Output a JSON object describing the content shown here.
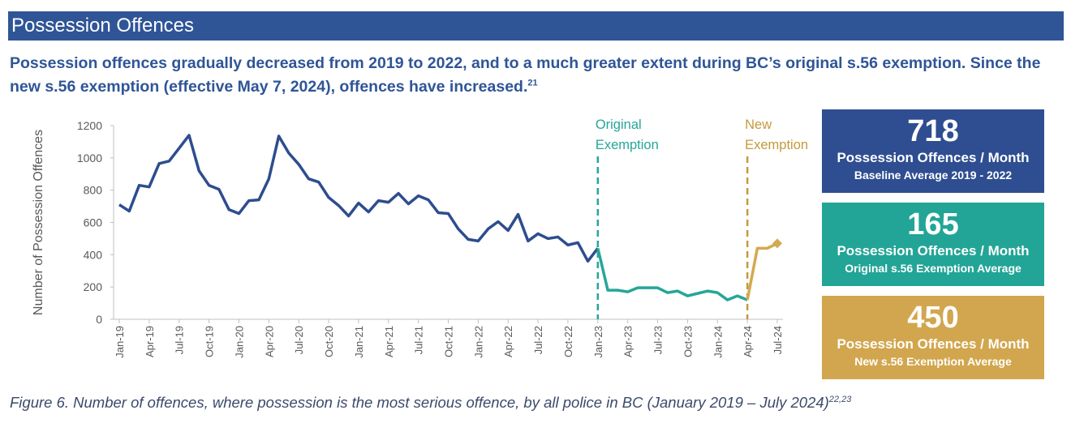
{
  "header": {
    "title": "Possession Offences"
  },
  "subtitle": {
    "text": "Possession offences gradually decreased from 2019 to 2022, and to a much greater extent during BC’s original s.56 exemption. Since the new s.56 exemption (effective May 7, 2024), offences have increased.",
    "superscript": "21"
  },
  "chart_data": {
    "type": "line",
    "y_label": "Number of Possession Offences",
    "categories": [
      "Jan-19",
      null,
      null,
      "Apr-19",
      null,
      null,
      "Jul-19",
      null,
      null,
      "Oct-19",
      null,
      null,
      "Jan-20",
      null,
      null,
      "Apr-20",
      null,
      null,
      "Jul-20",
      null,
      null,
      "Oct-20",
      null,
      null,
      "Jan-21",
      null,
      null,
      "Apr-21",
      null,
      null,
      "Jul-21",
      null,
      null,
      "Oct-21",
      null,
      null,
      "Jan-22",
      null,
      null,
      "Apr-22",
      null,
      null,
      "Jul-22",
      null,
      null,
      "Oct-22",
      null,
      null,
      "Jan-23",
      null,
      null,
      "Apr-23",
      null,
      null,
      "Jul-23",
      null,
      null,
      "Oct-23",
      null,
      null,
      "Jan-24",
      null,
      null,
      "Apr-24",
      null,
      null,
      "Jul-24"
    ],
    "series": [
      {
        "color": "#2e4d8f",
        "values": [
          710,
          670,
          830,
          820,
          965,
          980,
          1060,
          1140,
          920,
          830,
          805,
          680,
          655,
          735,
          740,
          870,
          1135,
          1030,
          960,
          870,
          850,
          755,
          705,
          640,
          720,
          665,
          735,
          725,
          780,
          715,
          765,
          740,
          660,
          655,
          560,
          495,
          485,
          560,
          605,
          550,
          650,
          485,
          530,
          500,
          510,
          460,
          475,
          360,
          440,
          null,
          null,
          null,
          null,
          null,
          null,
          null,
          null,
          null,
          null,
          null,
          null,
          null,
          null,
          null,
          null,
          null,
          null
        ]
      },
      {
        "color": "#26a699",
        "values": [
          null,
          null,
          null,
          null,
          null,
          null,
          null,
          null,
          null,
          null,
          null,
          null,
          null,
          null,
          null,
          null,
          null,
          null,
          null,
          null,
          null,
          null,
          null,
          null,
          null,
          null,
          null,
          null,
          null,
          null,
          null,
          null,
          null,
          null,
          null,
          null,
          null,
          null,
          null,
          null,
          null,
          null,
          null,
          null,
          null,
          null,
          null,
          null,
          440,
          180,
          180,
          170,
          195,
          195,
          195,
          165,
          175,
          145,
          160,
          175,
          165,
          120,
          145,
          120,
          null,
          null,
          null
        ]
      },
      {
        "color": "#d4a94f",
        "values": [
          null,
          null,
          null,
          null,
          null,
          null,
          null,
          null,
          null,
          null,
          null,
          null,
          null,
          null,
          null,
          null,
          null,
          null,
          null,
          null,
          null,
          null,
          null,
          null,
          null,
          null,
          null,
          null,
          null,
          null,
          null,
          null,
          null,
          null,
          null,
          null,
          null,
          null,
          null,
          null,
          null,
          null,
          null,
          null,
          null,
          null,
          null,
          null,
          null,
          null,
          null,
          null,
          null,
          null,
          null,
          null,
          null,
          null,
          null,
          null,
          null,
          null,
          null,
          120,
          440,
          440,
          470
        ]
      }
    ],
    "ylim": [
      0,
      1200
    ],
    "yticks": [
      0,
      200,
      400,
      600,
      800,
      1000,
      1200
    ],
    "annotations": [
      {
        "text": "Original Exemption",
        "x": "Jan-23",
        "color": "#26a699"
      },
      {
        "text": "New Exemption",
        "x": "Apr-24",
        "color": "#c49a3c"
      }
    ]
  },
  "stats": [
    {
      "value": "718",
      "label": "Possession Offences / Month",
      "sublabel": "Baseline Average 2019 - 2022",
      "color": "#2f4e91"
    },
    {
      "value": "165",
      "label": "Possession Offences / Month",
      "sublabel": "Original s.56 Exemption Average",
      "color": "#22a596"
    },
    {
      "value": "450",
      "label": "Possession Offences / Month",
      "sublabel": "New s.56 Exemption Average",
      "color": "#d2a64e"
    }
  ],
  "caption": {
    "text": "Figure 6. Number of offences, where possession is the most serious offence, by all police in BC (January 2019 – July 2024)",
    "superscript": "22,23"
  }
}
